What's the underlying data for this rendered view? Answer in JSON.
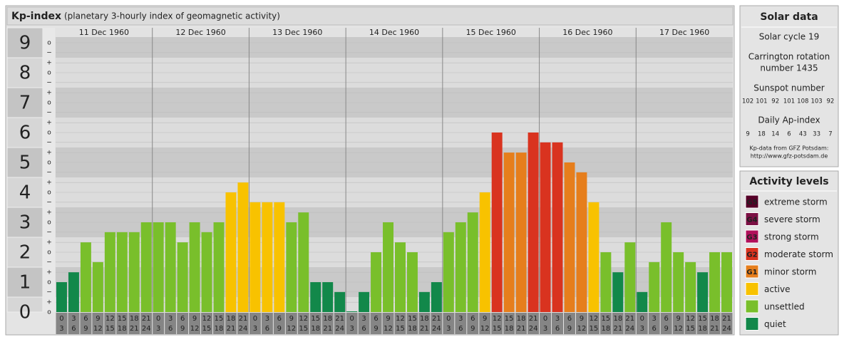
{
  "chart_data": {
    "type": "bar",
    "title": "Kp-index",
    "subtitle": "(planetary 3-hourly index of geomagnetic activity)",
    "days": [
      "11 Dec 1960",
      "12 Dec 1960",
      "13 Dec 1960",
      "14 Dec 1960",
      "15 Dec 1960",
      "16 Dec 1960",
      "17 Dec 1960"
    ],
    "hours": [
      [
        0,
        3
      ],
      [
        3,
        6
      ],
      [
        6,
        9
      ],
      [
        9,
        12
      ],
      [
        12,
        15
      ],
      [
        15,
        18
      ],
      [
        18,
        21
      ],
      [
        21,
        24
      ]
    ],
    "values": [
      1,
      1.33,
      2.33,
      1.67,
      2.67,
      2.67,
      2.67,
      3,
      3,
      3,
      2.33,
      3,
      2.67,
      3,
      4,
      4.33,
      3.67,
      3.67,
      3.67,
      3,
      3.33,
      1,
      1,
      0.67,
      0,
      0.67,
      2,
      3,
      2.33,
      2,
      0.67,
      1,
      2.67,
      3,
      3.33,
      4,
      6,
      5.33,
      5.33,
      6,
      5.67,
      5.67,
      5,
      4.67,
      3.67,
      2,
      1.33,
      2.33,
      0.67,
      1.67,
      3,
      2,
      1.67,
      1.33,
      2,
      2
    ],
    "colors": [
      "#12884a",
      "#12884a",
      "#79bf2b",
      "#79bf2b",
      "#79bf2b",
      "#79bf2b",
      "#79bf2b",
      "#79bf2b",
      "#79bf2b",
      "#79bf2b",
      "#79bf2b",
      "#79bf2b",
      "#79bf2b",
      "#79bf2b",
      "#f8c200",
      "#f8c200",
      "#f8c200",
      "#f8c200",
      "#f8c200",
      "#79bf2b",
      "#79bf2b",
      "#12884a",
      "#12884a",
      "#12884a",
      "#12884a",
      "#12884a",
      "#79bf2b",
      "#79bf2b",
      "#79bf2b",
      "#79bf2b",
      "#12884a",
      "#12884a",
      "#79bf2b",
      "#79bf2b",
      "#79bf2b",
      "#f8c200",
      "#d9331f",
      "#e67e1c",
      "#e67e1c",
      "#d9331f",
      "#d9331f",
      "#d9331f",
      "#e67e1c",
      "#e67e1c",
      "#f8c200",
      "#79bf2b",
      "#12884a",
      "#79bf2b",
      "#12884a",
      "#79bf2b",
      "#79bf2b",
      "#79bf2b",
      "#79bf2b",
      "#12884a",
      "#79bf2b",
      "#79bf2b"
    ],
    "ylim": [
      0,
      9.5
    ],
    "yticks": [
      0,
      1,
      2,
      3,
      4,
      5,
      6,
      7,
      8,
      9
    ],
    "minor_yticks": [
      {
        "value": 0,
        "label": "o"
      },
      {
        "value": 0.33,
        "label": "+"
      },
      {
        "value": 0.67,
        "label": "−"
      },
      {
        "value": 1,
        "label": "o"
      },
      {
        "value": 1.33,
        "label": "+"
      },
      {
        "value": 1.67,
        "label": "−"
      },
      {
        "value": 2,
        "label": "o"
      },
      {
        "value": 2.33,
        "label": "+"
      },
      {
        "value": 2.67,
        "label": "−"
      },
      {
        "value": 3,
        "label": "o"
      },
      {
        "value": 3.33,
        "label": "+"
      },
      {
        "value": 3.67,
        "label": "−"
      },
      {
        "value": 4,
        "label": "o"
      },
      {
        "value": 4.33,
        "label": "+"
      },
      {
        "value": 4.67,
        "label": "−"
      },
      {
        "value": 5,
        "label": "o"
      },
      {
        "value": 5.33,
        "label": "+"
      },
      {
        "value": 5.67,
        "label": "−"
      },
      {
        "value": 6,
        "label": "o"
      },
      {
        "value": 6.33,
        "label": "+"
      },
      {
        "value": 6.67,
        "label": "−"
      },
      {
        "value": 7,
        "label": "o"
      },
      {
        "value": 7.33,
        "label": "+"
      },
      {
        "value": 7.67,
        "label": "−"
      },
      {
        "value": 8,
        "label": "o"
      },
      {
        "value": 8.33,
        "label": "+"
      },
      {
        "value": 8.67,
        "label": "−"
      },
      {
        "value": 9,
        "label": "o"
      }
    ],
    "grid": true,
    "solar": {
      "title": "Solar data",
      "cycle": "Solar cycle 19",
      "carrington": [
        "Carrington rotation",
        "number 1435"
      ],
      "sunspot_title": "Sunspot number",
      "sunspot": [
        102,
        101,
        92,
        101,
        108,
        103,
        92
      ],
      "ap_title": "Daily Ap-index",
      "ap": [
        9,
        18,
        14,
        6,
        43,
        33,
        7
      ],
      "source": [
        "Kp-data from GFZ Potsdam:",
        "http://www.gfz-potsdam.de"
      ]
    },
    "legend": {
      "title": "Activity levels",
      "items": [
        {
          "code": "G5",
          "label": "extreme storm",
          "color": "#560028"
        },
        {
          "code": "G4",
          "label": "severe storm",
          "color": "#7b1044"
        },
        {
          "code": "G3",
          "label": "strong storm",
          "color": "#b0105a"
        },
        {
          "code": "G2",
          "label": "moderate storm",
          "color": "#d9331f"
        },
        {
          "code": "G1",
          "label": "minor storm",
          "color": "#e67e1c"
        },
        {
          "label": "active",
          "color": "#f8c200"
        },
        {
          "label": "unsettled",
          "color": "#79bf2b"
        },
        {
          "label": "quiet",
          "color": "#12884a"
        }
      ]
    }
  }
}
